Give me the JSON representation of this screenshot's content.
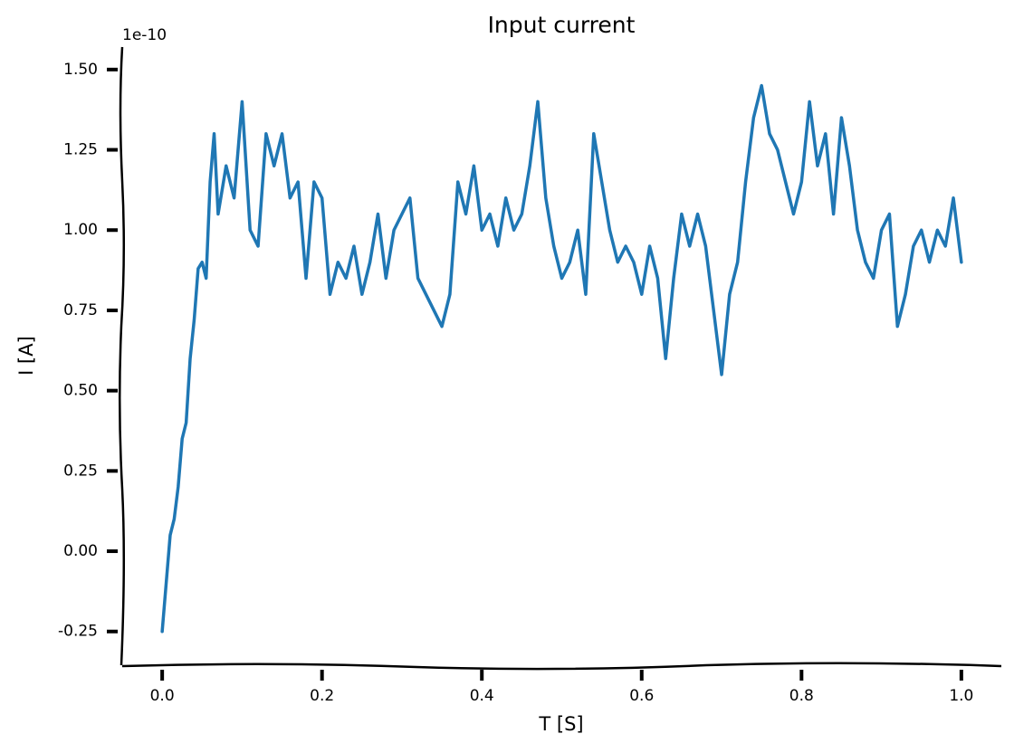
{
  "chart_data": {
    "type": "line",
    "title": "Input current",
    "x_label": "T [S]",
    "y_label": "I [A]",
    "y_offset_label": "1e-10",
    "xlim": [
      -0.05,
      1.05
    ],
    "ylim": [
      -0.355,
      1.57
    ],
    "xticks": [
      {
        "value": 0,
        "label": "0.0"
      },
      0.2,
      0.4,
      0.6,
      0.8,
      {
        "value": 1,
        "label": "1.0"
      }
    ],
    "yticks": [
      -0.25,
      {
        "value": 0,
        "label": "0.00"
      },
      0.25,
      {
        "value": 0.5,
        "label": "0.50"
      },
      0.75,
      {
        "value": 1,
        "label": "1.00"
      },
      1.25,
      {
        "value": 1.5,
        "label": "1.50"
      }
    ],
    "grid": false,
    "series": [
      {
        "name": "I",
        "color": "#1f77b4",
        "x": [
          0,
          0.005,
          0.01,
          0.015,
          0.02,
          0.025,
          0.03,
          0.035,
          0.04,
          0.045,
          0.05,
          0.055,
          0.06,
          0.065,
          0.07,
          0.08,
          0.09,
          0.1,
          0.11,
          0.12,
          0.13,
          0.14,
          0.15,
          0.16,
          0.17,
          0.18,
          0.19,
          0.2,
          0.21,
          0.22,
          0.23,
          0.24,
          0.25,
          0.26,
          0.27,
          0.28,
          0.29,
          0.3,
          0.31,
          0.32,
          0.33,
          0.34,
          0.35,
          0.36,
          0.37,
          0.38,
          0.39,
          0.4,
          0.41,
          0.42,
          0.43,
          0.44,
          0.45,
          0.46,
          0.47,
          0.48,
          0.49,
          0.5,
          0.51,
          0.52,
          0.53,
          0.54,
          0.55,
          0.56,
          0.57,
          0.58,
          0.59,
          0.6,
          0.61,
          0.62,
          0.63,
          0.64,
          0.65,
          0.66,
          0.67,
          0.68,
          0.69,
          0.7,
          0.71,
          0.72,
          0.73,
          0.74,
          0.75,
          0.76,
          0.77,
          0.78,
          0.79,
          0.8,
          0.81,
          0.82,
          0.83,
          0.84,
          0.85,
          0.86,
          0.87,
          0.88,
          0.89,
          0.9,
          0.91,
          0.92,
          0.93,
          0.94,
          0.95,
          0.96,
          0.97,
          0.98,
          0.99,
          1.0
        ],
        "values": [
          -0.25,
          -0.1,
          0.05,
          0.1,
          0.2,
          0.35,
          0.4,
          0.6,
          0.72,
          0.88,
          0.9,
          0.85,
          1.15,
          1.3,
          1.05,
          1.2,
          1.1,
          1.4,
          1.0,
          0.95,
          1.3,
          1.2,
          1.3,
          1.1,
          1.15,
          0.85,
          1.15,
          1.1,
          0.8,
          0.9,
          0.85,
          0.95,
          0.8,
          0.9,
          1.05,
          0.85,
          1.0,
          1.05,
          1.1,
          0.85,
          0.8,
          0.75,
          0.7,
          0.8,
          1.15,
          1.05,
          1.2,
          1.0,
          1.05,
          0.95,
          1.1,
          1.0,
          1.05,
          1.2,
          1.4,
          1.1,
          0.95,
          0.85,
          0.9,
          1.0,
          0.8,
          1.3,
          1.15,
          1.0,
          0.9,
          0.95,
          0.9,
          0.8,
          0.95,
          0.85,
          0.6,
          0.85,
          1.05,
          0.95,
          1.05,
          0.95,
          0.75,
          0.55,
          0.8,
          0.9,
          1.15,
          1.35,
          1.45,
          1.3,
          1.25,
          1.15,
          1.05,
          1.15,
          1.4,
          1.2,
          1.3,
          1.05,
          1.35,
          1.2,
          1.0,
          0.9,
          0.85,
          1.0,
          1.05,
          0.7,
          0.8,
          0.95,
          1.0,
          0.9,
          1.0,
          0.95,
          1.1,
          0.9
        ]
      }
    ]
  }
}
